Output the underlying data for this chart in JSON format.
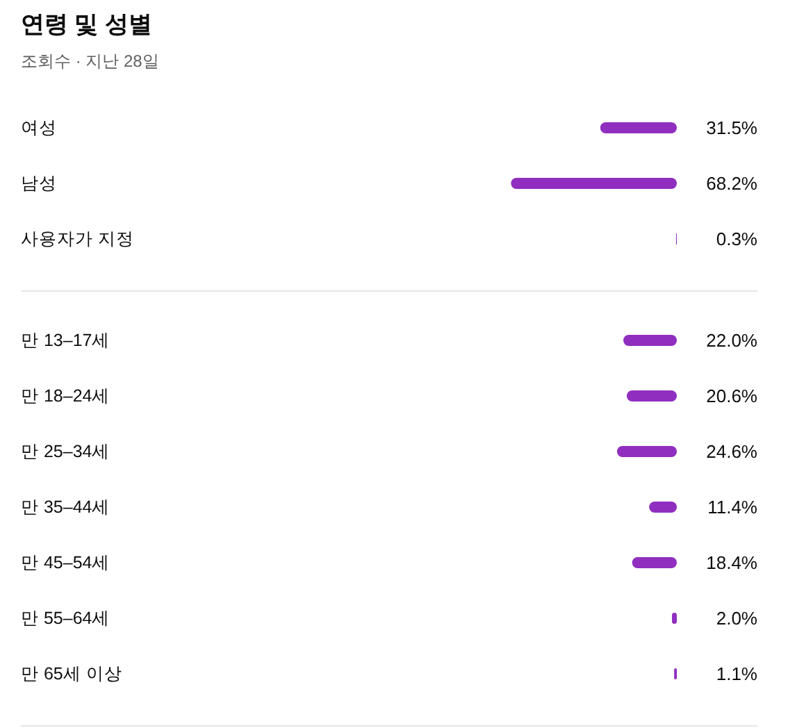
{
  "chart_data": [
    {
      "type": "bar",
      "orientation": "horizontal",
      "title": "연령 및 성별",
      "subtitle": "조회수 · 지난 28일",
      "categories": [
        "여성",
        "남성",
        "사용자가 지정"
      ],
      "values": [
        31.5,
        68.2,
        0.3
      ],
      "color": "#902fbf",
      "value_labels": [
        "31.5%",
        "68.2%",
        "0.3%"
      ],
      "tick_labels": "y"
    },
    {
      "type": "bar",
      "orientation": "horizontal",
      "categories": [
        "만 13–17세",
        "만 18–24세",
        "만 25–34세",
        "만 35–44세",
        "만 45–54세",
        "만 55–64세",
        "만 65세 이상"
      ],
      "values": [
        22.0,
        20.6,
        24.6,
        11.4,
        18.4,
        2.0,
        1.1
      ],
      "color": "#902fbf",
      "value_labels": [
        "22.0%",
        "20.6%",
        "24.6%",
        "11.4%",
        "18.4%",
        "2.0%",
        "1.1%"
      ],
      "tick_labels": "y"
    }
  ]
}
